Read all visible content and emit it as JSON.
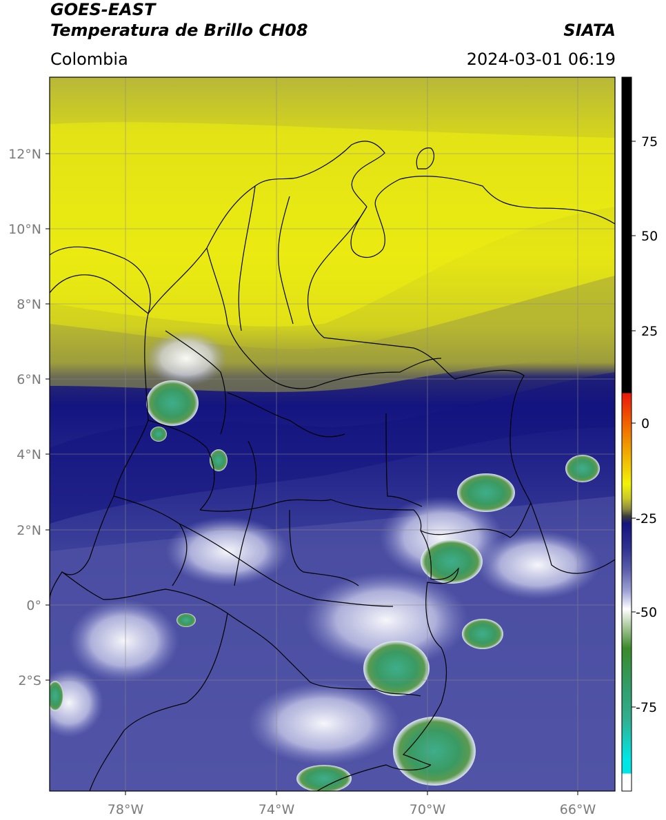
{
  "header": {
    "satellite": "GOES-EAST",
    "product": "Temperatura de Brillo CH08",
    "region": "Colombia",
    "organization": "SIATA",
    "timestamp": "2024-03-01 06:19"
  },
  "axes": {
    "lon_labels": [
      "78°W",
      "74°W",
      "70°W",
      "66°W"
    ],
    "lat_labels": [
      "12°N",
      "10°N",
      "8°N",
      "6°N",
      "4°N",
      "2°N",
      "0°",
      "2°S"
    ]
  },
  "colorbar": {
    "tick_labels": [
      "75",
      "50",
      "25",
      "0",
      "-25",
      "-50",
      "-75"
    ],
    "colors": {
      "black": "#000000",
      "red": "#e8180c",
      "orange": "#f08a00",
      "yellow": "#f2f20a",
      "olive": "#a8a83a",
      "dark_olive": "#3c3c3c",
      "navy": "#14147e",
      "slate": "#4a4ea0",
      "lavender": "#9ea2d6",
      "white": "#ffffff",
      "green": "#3a8a2a",
      "teal": "#30b090",
      "cyan": "#00e6e6"
    }
  },
  "map": {
    "colors": {
      "yellow_bright": "#eeee10",
      "yellow": "#dada18",
      "olive": "#b8b838",
      "olive_dark": "#8e8e3a",
      "navy": "#141480",
      "blue": "#3a3e98",
      "lavender": "#8c90cc",
      "cloud_white": "#eef0ff",
      "green": "#3f8f3f",
      "teal": "#3fae8c",
      "border": "#000000",
      "grid": "#8a8a8a"
    }
  }
}
